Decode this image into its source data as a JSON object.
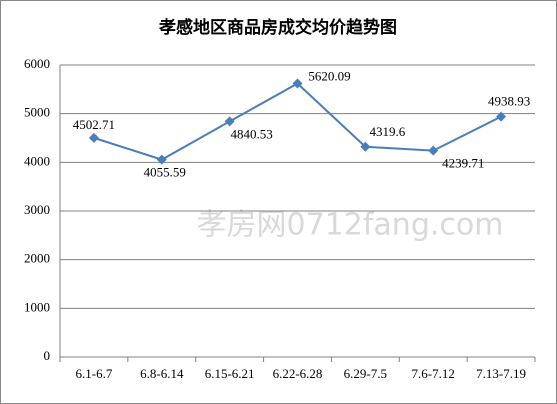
{
  "chart_data": {
    "type": "line",
    "title": "孝感地区商品房成交均价趋势图",
    "watermark": "孝房网0712fang.com",
    "categories": [
      "6.1-6.7",
      "6.8-6.14",
      "6.15-6.21",
      "6.22-6.28",
      "6.29-7.5",
      "7.6-7.12",
      "7.13-7.19"
    ],
    "values": [
      4502.71,
      4055.59,
      4840.53,
      5620.09,
      4319.6,
      4239.71,
      4938.93
    ],
    "color": "#4a7ebb",
    "ylim": [
      0,
      6000
    ],
    "yticks": [
      0,
      1000,
      2000,
      3000,
      4000,
      5000,
      6000
    ],
    "grid": true
  }
}
